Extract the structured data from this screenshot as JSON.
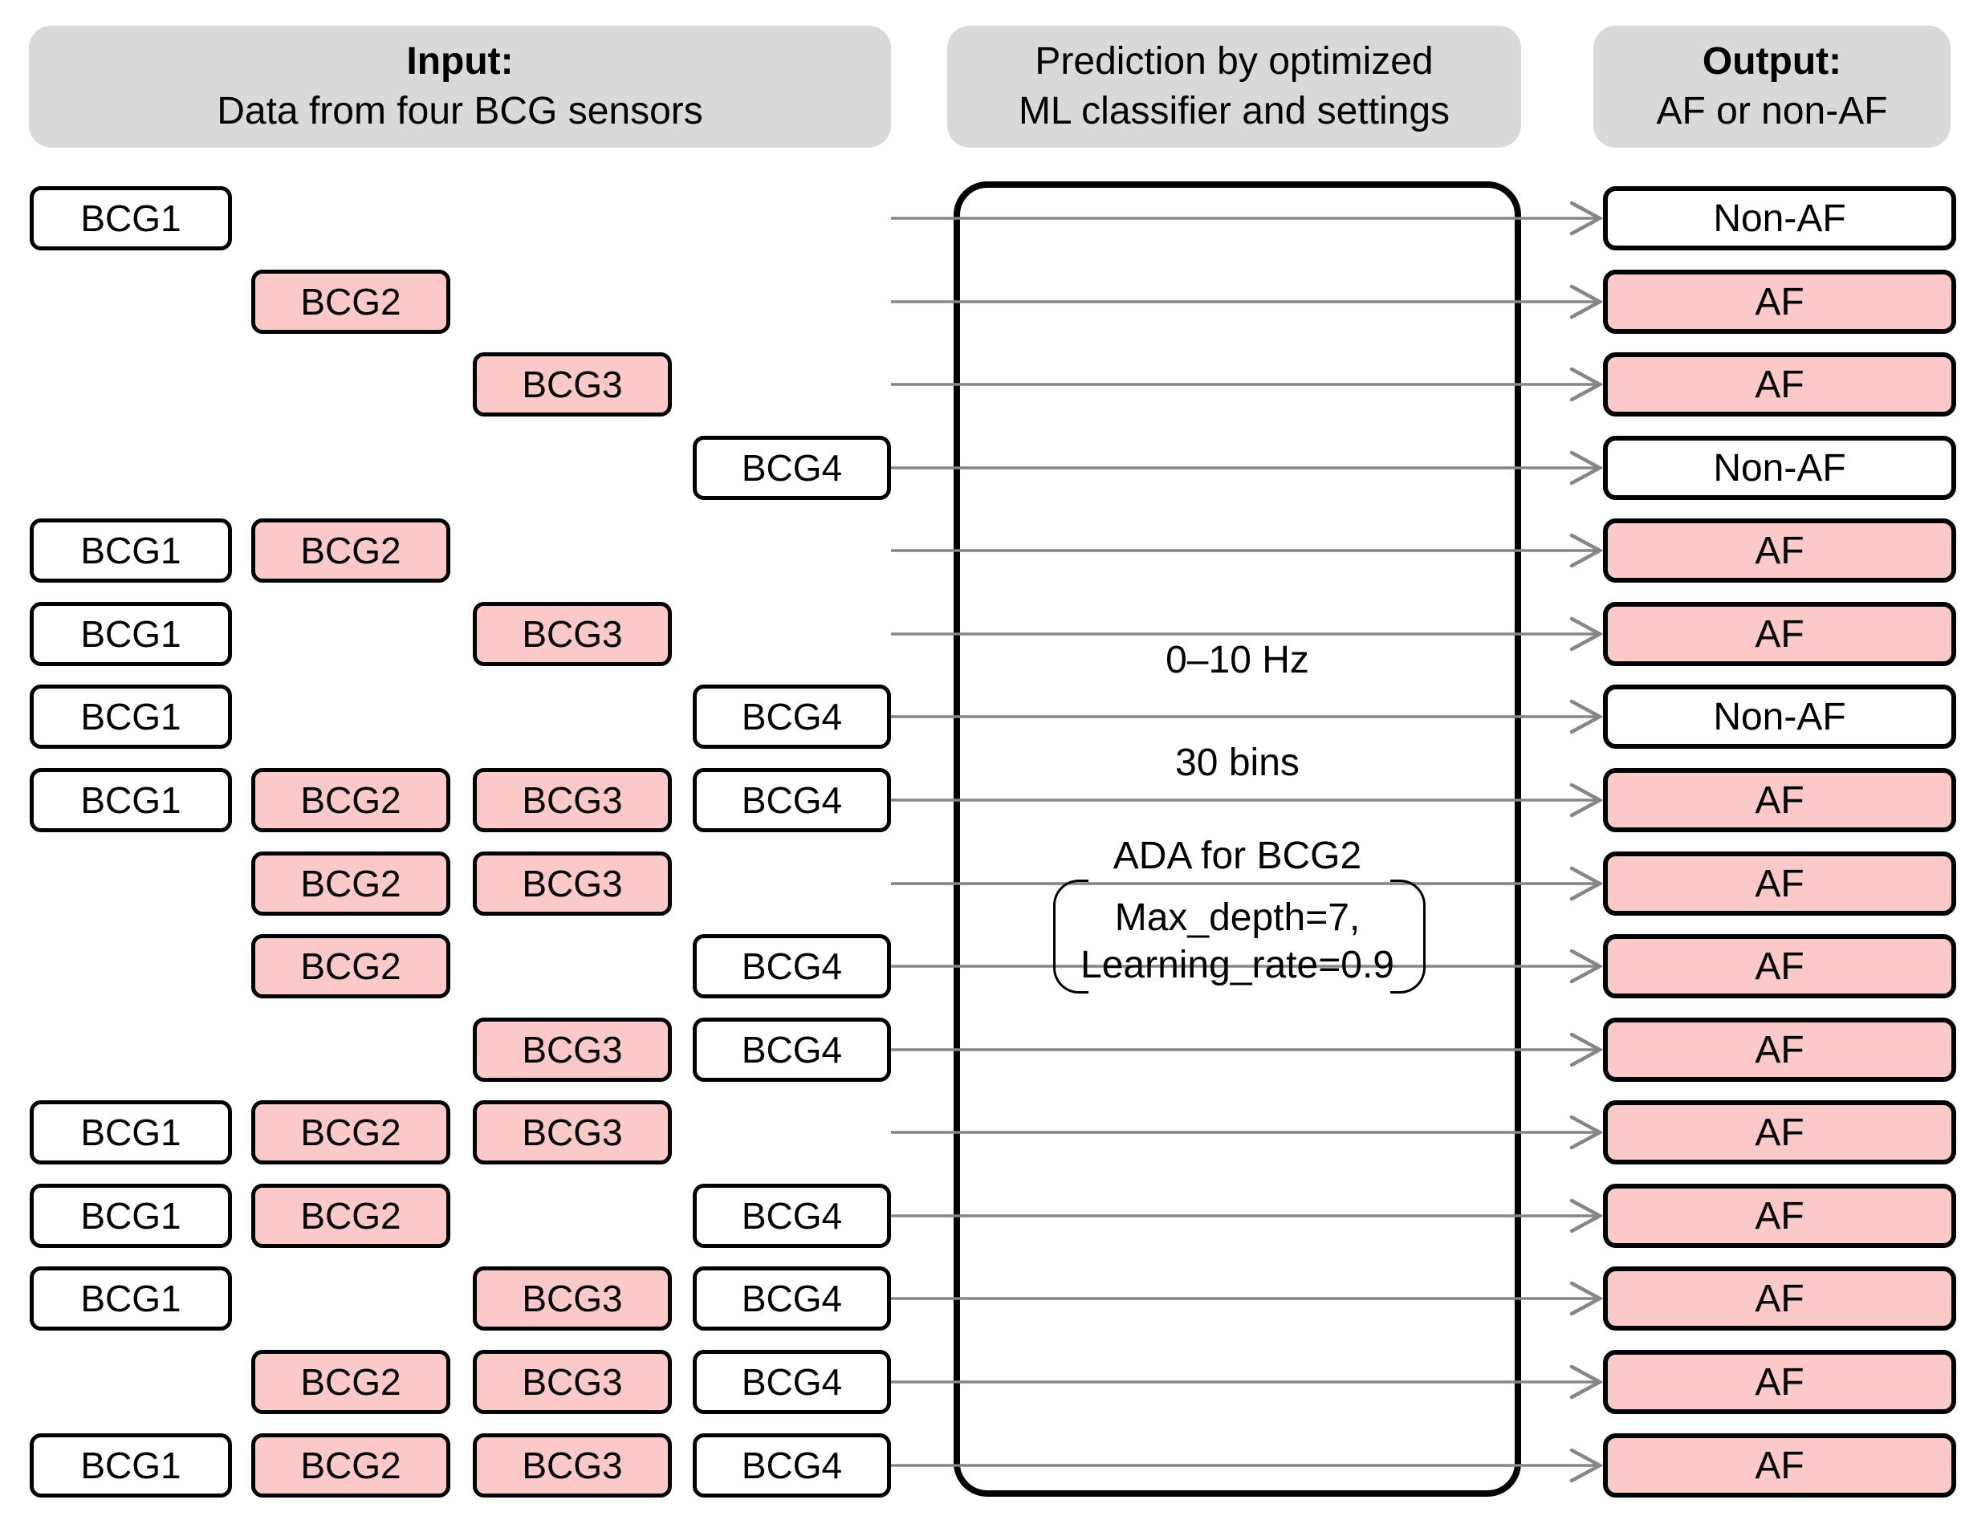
{
  "figure": {
    "headers": {
      "input": {
        "title": "Input:",
        "subtitle": "Data from four BCG sensors"
      },
      "classifier": {
        "line1": "Prediction by optimized",
        "line2": "ML classifier and settings"
      },
      "output": {
        "title": "Output:",
        "subtitle": "AF or non-AF"
      }
    },
    "classifier_settings": {
      "frequency_band": "0–10 Hz",
      "bins": "30 bins",
      "model": "ADA for BCG2",
      "hyperparameter_line1": "Max_depth=7,",
      "hyperparameter_line2": "Learning_rate=0.9"
    },
    "rows": [
      {
        "inputs": [
          {
            "label": "BCG1",
            "highlight": false
          }
        ],
        "output": {
          "label": "Non-AF",
          "highlight": false
        }
      },
      {
        "inputs": [
          {
            "label": "BCG2",
            "highlight": true
          }
        ],
        "output": {
          "label": "AF",
          "highlight": true
        }
      },
      {
        "inputs": [
          {
            "label": "BCG3",
            "highlight": true
          }
        ],
        "output": {
          "label": "AF",
          "highlight": true
        }
      },
      {
        "inputs": [
          {
            "label": "BCG4",
            "highlight": false
          }
        ],
        "output": {
          "label": "Non-AF",
          "highlight": false
        }
      },
      {
        "inputs": [
          {
            "label": "BCG1",
            "highlight": false
          },
          {
            "label": "BCG2",
            "highlight": true
          }
        ],
        "output": {
          "label": "AF",
          "highlight": true
        }
      },
      {
        "inputs": [
          {
            "label": "BCG1",
            "highlight": false
          },
          {
            "label": "BCG3",
            "highlight": true
          }
        ],
        "output": {
          "label": "AF",
          "highlight": true
        }
      },
      {
        "inputs": [
          {
            "label": "BCG1",
            "highlight": false
          },
          {
            "label": "BCG4",
            "highlight": false
          }
        ],
        "output": {
          "label": "Non-AF",
          "highlight": false
        }
      },
      {
        "inputs": [
          {
            "label": "BCG1",
            "highlight": false
          },
          {
            "label": "BCG2",
            "highlight": true
          },
          {
            "label": "BCG3",
            "highlight": true
          },
          {
            "label": "BCG4",
            "highlight": false
          }
        ],
        "output": {
          "label": "AF",
          "highlight": true
        }
      },
      {
        "inputs": [
          {
            "label": "BCG2",
            "highlight": true
          },
          {
            "label": "BCG3",
            "highlight": true
          }
        ],
        "output": {
          "label": "AF",
          "highlight": true
        }
      },
      {
        "inputs": [
          {
            "label": "BCG2",
            "highlight": true
          },
          {
            "label": "BCG4",
            "highlight": false
          }
        ],
        "output": {
          "label": "AF",
          "highlight": true
        }
      },
      {
        "inputs": [
          {
            "label": "BCG3",
            "highlight": true
          },
          {
            "label": "BCG4",
            "highlight": false
          }
        ],
        "output": {
          "label": "AF",
          "highlight": true
        }
      },
      {
        "inputs": [
          {
            "label": "BCG1",
            "highlight": false
          },
          {
            "label": "BCG2",
            "highlight": true
          },
          {
            "label": "BCG3",
            "highlight": true
          }
        ],
        "output": {
          "label": "AF",
          "highlight": true
        }
      },
      {
        "inputs": [
          {
            "label": "BCG1",
            "highlight": false
          },
          {
            "label": "BCG2",
            "highlight": true
          },
          {
            "label": "BCG4",
            "highlight": false
          }
        ],
        "output": {
          "label": "AF",
          "highlight": true
        }
      },
      {
        "inputs": [
          {
            "label": "BCG1",
            "highlight": false
          },
          {
            "label": "BCG3",
            "highlight": true
          },
          {
            "label": "BCG4",
            "highlight": false
          }
        ],
        "output": {
          "label": "AF",
          "highlight": true
        }
      },
      {
        "inputs": [
          {
            "label": "BCG2",
            "highlight": true
          },
          {
            "label": "BCG3",
            "highlight": true
          },
          {
            "label": "BCG4",
            "highlight": false
          }
        ],
        "output": {
          "label": "AF",
          "highlight": true
        }
      },
      {
        "inputs": [
          {
            "label": "BCG1",
            "highlight": false
          },
          {
            "label": "BCG2",
            "highlight": true
          },
          {
            "label": "BCG3",
            "highlight": true
          },
          {
            "label": "BCG4",
            "highlight": false
          }
        ],
        "output": {
          "label": "AF",
          "highlight": true
        }
      }
    ],
    "colors": {
      "highlight": "#fcc9c9",
      "header_bg": "#d9d9d9",
      "arrow": "#868686",
      "border": "#000000"
    }
  }
}
